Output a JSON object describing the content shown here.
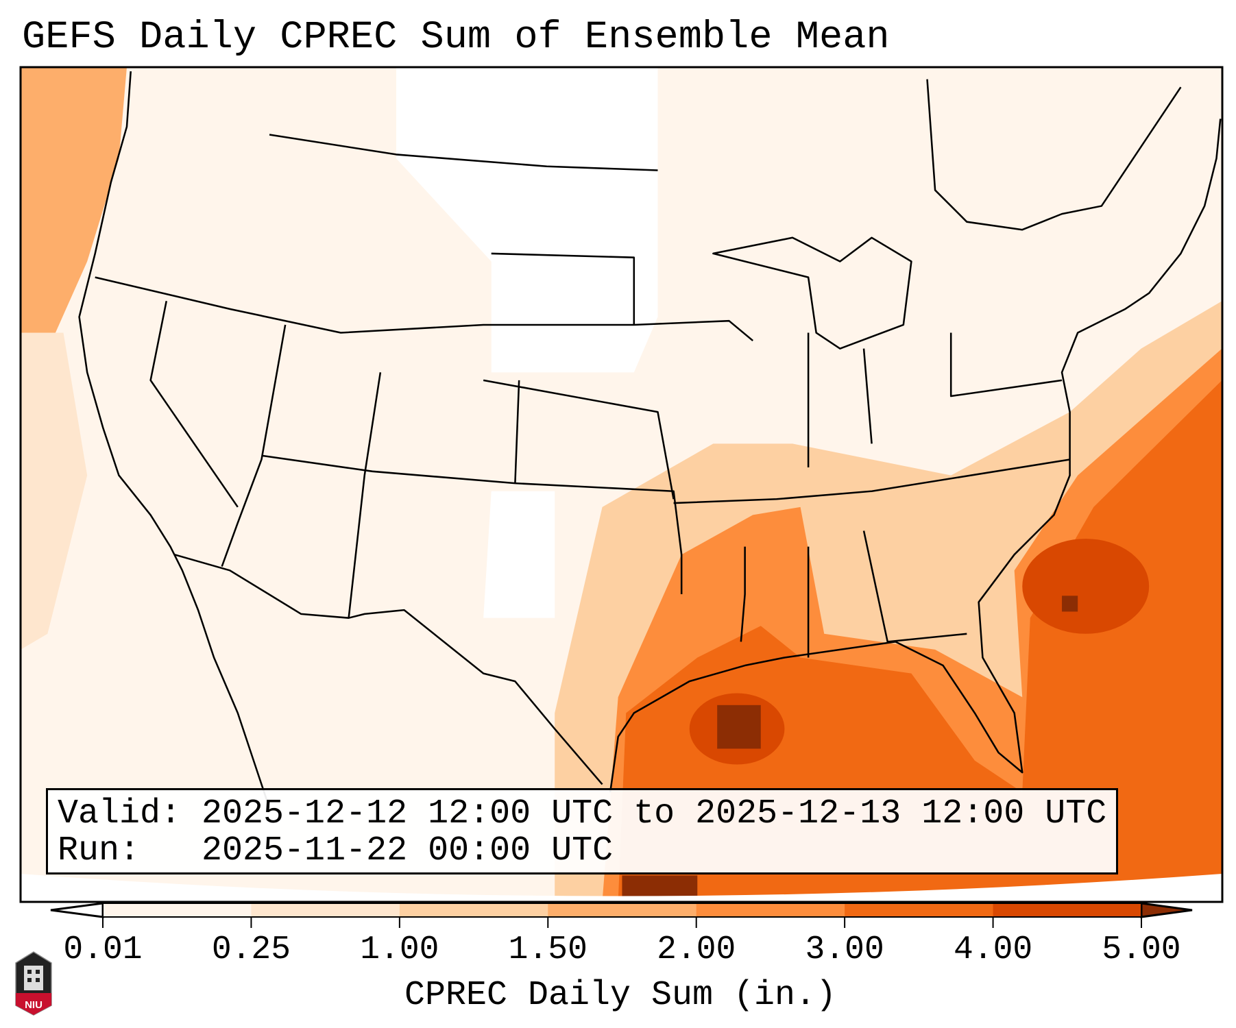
{
  "title": "GEFS Daily CPREC Sum of Ensemble Mean",
  "info": {
    "valid_line": "Valid: 2025-12-12 12:00 UTC to 2025-12-13 12:00 UTC",
    "run_line": "Run:   2025-11-22 00:00 UTC"
  },
  "logo_text": "NIU",
  "chart_data": {
    "type": "heatmap",
    "title": "GEFS Daily CPREC Sum of Ensemble Mean",
    "region": "Continental United States",
    "colorbar": {
      "label": "CPREC Daily Sum (in.)",
      "ticks": [
        "0.01",
        "0.25",
        "1.00",
        "1.50",
        "2.00",
        "3.00",
        "4.00",
        "5.00"
      ],
      "bounds": [
        0.01,
        0.25,
        1.0,
        1.5,
        2.0,
        3.0,
        4.0,
        5.0
      ],
      "colors": [
        "#fff5eb",
        "#fee6ce",
        "#fdd0a2",
        "#fdae6b",
        "#fd8d3c",
        "#f16913",
        "#d94801"
      ],
      "under_color": "#ffffff",
      "over_color": "#8c2d04",
      "extend": "both"
    },
    "features": [
      {
        "area": "Gulf of Mexico / Louisiana coast",
        "approx_range_in": [
          3.0,
          5.0
        ]
      },
      {
        "area": "Western Atlantic off Southeast coast",
        "approx_range_in": [
          3.0,
          5.0
        ]
      },
      {
        "area": "Lower Mississippi Valley / Deep South",
        "approx_range_in": [
          1.0,
          3.0
        ]
      },
      {
        "area": "Pacific Northwest offshore",
        "approx_range_in": [
          1.0,
          2.0
        ]
      },
      {
        "area": "Interior West / Plains",
        "approx_range_in": [
          0.0,
          0.25
        ]
      }
    ]
  }
}
